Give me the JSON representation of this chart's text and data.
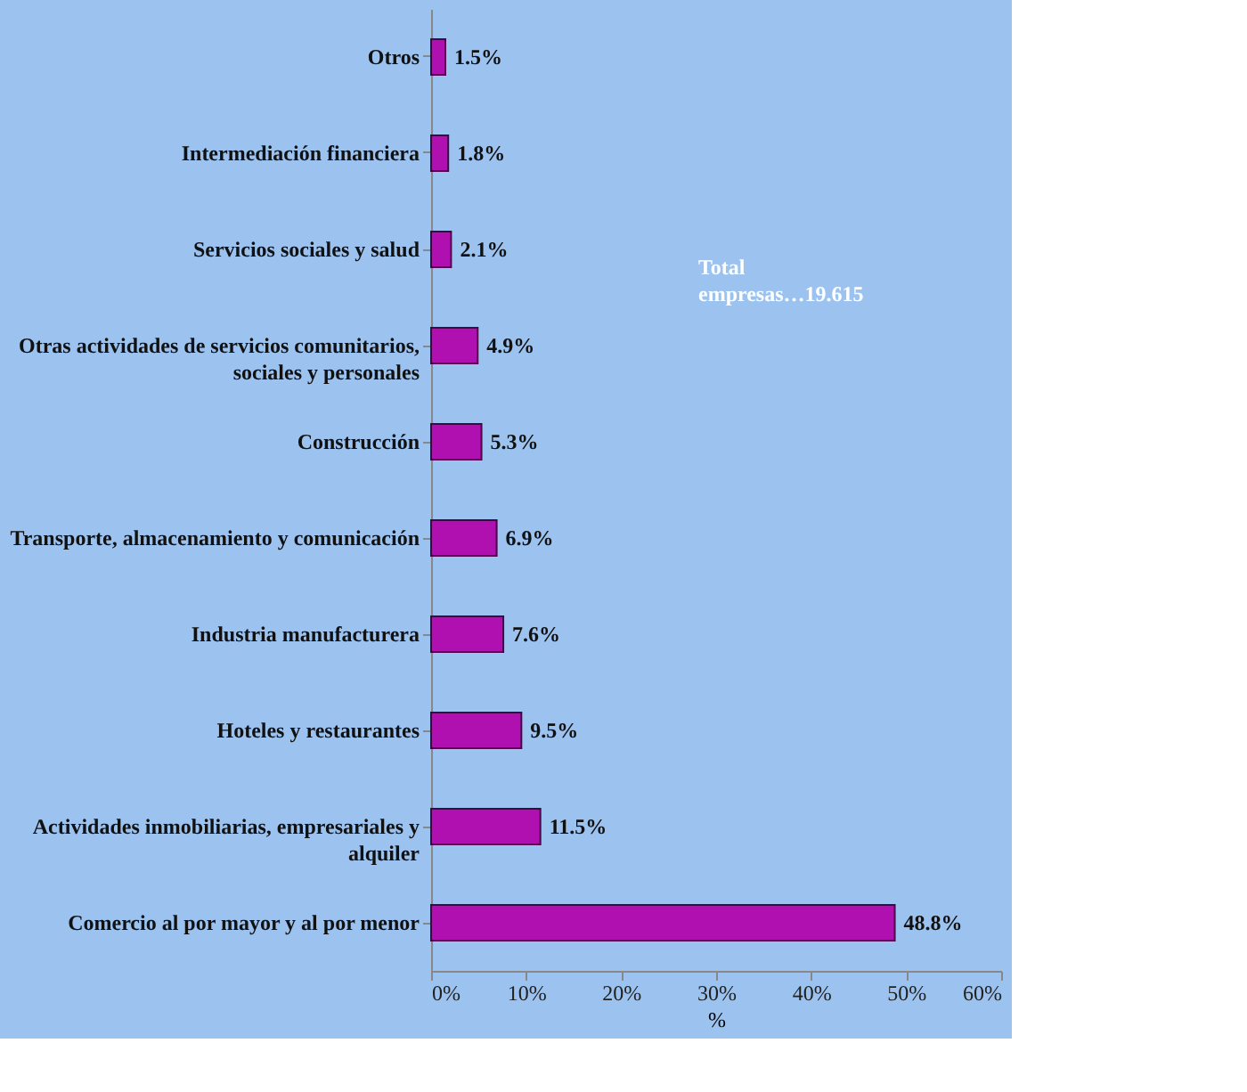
{
  "chart_data": {
    "type": "bar",
    "orientation": "horizontal",
    "categories": [
      "Otros",
      "Intermediación financiera",
      "Servicios sociales y salud",
      "Otras actividades de servicios comunitarios, sociales y personales",
      "Construcción",
      "Transporte, almacenamiento y comunicación",
      "Industria manufacturera",
      "Hoteles y restaurantes",
      "Actividades inmobiliarias, empresariales y alquiler",
      "Comercio al por mayor y al por menor"
    ],
    "values": [
      1.5,
      1.8,
      2.1,
      4.9,
      5.3,
      6.9,
      7.6,
      9.5,
      11.5,
      48.8
    ],
    "value_labels": [
      "1.5%",
      "1.8%",
      "2.1%",
      "4.9%",
      "5.3%",
      "6.9%",
      "7.6%",
      "9.5%",
      "11.5%",
      "48.8%"
    ],
    "color": "#b010b0",
    "xlim": [
      0,
      60
    ],
    "xticks": [
      {
        "value": 0,
        "label": "0%"
      },
      {
        "value": 10,
        "label": "10%"
      },
      {
        "value": 20,
        "label": "20%"
      },
      {
        "value": 30,
        "label": "30%"
      },
      {
        "value": 40,
        "label": "40%"
      },
      {
        "value": 50,
        "label": "50%"
      },
      {
        "value": 60,
        "label": "60%"
      }
    ],
    "xlabel": "%",
    "annotations": [
      "Total empresas…19.615"
    ],
    "grid": false
  }
}
